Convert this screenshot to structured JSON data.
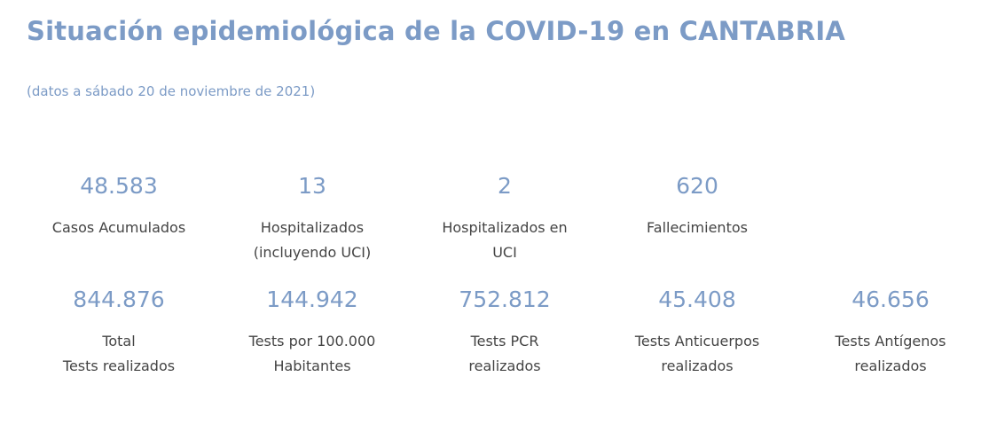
{
  "header": {
    "title": "Situación epidemiológica de la COVID-19 en CANTABRIA",
    "subtitle": "(datos a sábado 20 de noviembre de 2021)"
  },
  "colors": {
    "accent": "#7c9bc6",
    "text": "#444444"
  },
  "stats_row1": [
    {
      "value": "48.583",
      "label": "Casos Acumulados"
    },
    {
      "value": "13",
      "label": "Hospitalizados\n(incluyendo UCI)"
    },
    {
      "value": "2",
      "label": "Hospitalizados en\nUCI"
    },
    {
      "value": "620",
      "label": "Fallecimientos"
    }
  ],
  "stats_row2": [
    {
      "value": "844.876",
      "label": "Total\nTests realizados"
    },
    {
      "value": "144.942",
      "label": "Tests por 100.000\nHabitantes"
    },
    {
      "value": "752.812",
      "label": "Tests PCR\nrealizados"
    },
    {
      "value": "45.408",
      "label": "Tests Anticuerpos\nrealizados"
    },
    {
      "value": "46.656",
      "label": "Tests Antígenos\nrealizados"
    }
  ]
}
